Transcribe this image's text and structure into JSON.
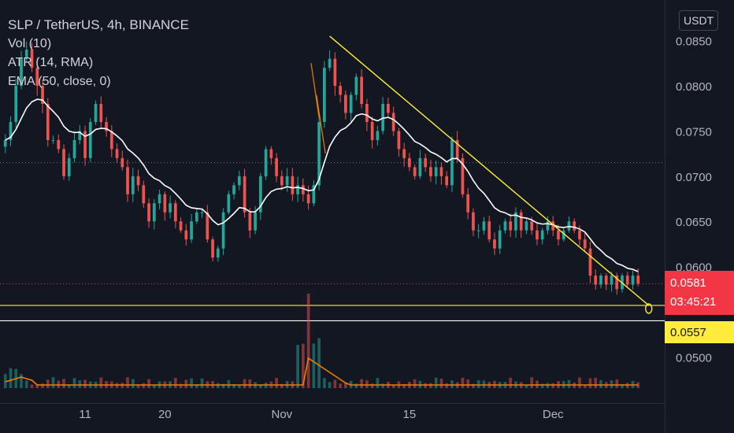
{
  "legend": {
    "symbol": "SLP / TetherUS, 4h, BINANCE",
    "vol": "Vol (10)",
    "atr": "ATR (14, RMA)",
    "ema": "EMA (50, close, 0)"
  },
  "currency": "USDT",
  "last_price": "0.0581",
  "countdown": "03:45:21",
  "level_price": "0.0557",
  "colors": {
    "background": "#131722",
    "up": "#26a69a",
    "down": "#ef5350",
    "ema": "#ffffff",
    "trendline": "#ffeb3b",
    "volume_ma": "#f57c00",
    "last_price_bg": "#f23645"
  },
  "chart_data": {
    "type": "candlestick",
    "title": "SLP / TetherUS, 4h, BINANCE",
    "ylim": [
      0.0455,
      0.0895
    ],
    "y_ticks": [
      0.085,
      0.08,
      0.075,
      0.07,
      0.065,
      0.06,
      0.05
    ],
    "y_tick_labels": [
      "0.0850",
      "0.0800",
      "0.0750",
      "0.0700",
      "0.0650",
      "0.0600",
      "0.0500"
    ],
    "x_ticks": [
      {
        "label": "11",
        "index": 15
      },
      {
        "label": "20",
        "index": 30
      },
      {
        "label": "Nov",
        "index": 52
      },
      {
        "label": "15",
        "index": 76
      },
      {
        "label": "Dec",
        "index": 103
      }
    ],
    "x_range": [
      -1,
      124
    ],
    "close_approx": [
      0.074,
      0.076,
      0.08,
      0.083,
      0.084,
      0.082,
      0.08,
      0.078,
      0.074,
      0.074,
      0.073,
      0.07,
      0.072,
      0.074,
      0.075,
      0.072,
      0.076,
      0.078,
      0.076,
      0.075,
      0.073,
      0.072,
      0.071,
      0.068,
      0.07,
      0.069,
      0.067,
      0.065,
      0.067,
      0.068,
      0.066,
      0.067,
      0.065,
      0.064,
      0.063,
      0.065,
      0.066,
      0.066,
      0.063,
      0.061,
      0.062,
      0.066,
      0.068,
      0.069,
      0.07,
      0.066,
      0.064,
      0.066,
      0.07,
      0.073,
      0.072,
      0.07,
      0.069,
      0.07,
      0.068,
      0.069,
      0.068,
      0.067,
      0.069,
      0.076,
      0.082,
      0.083,
      0.08,
      0.079,
      0.077,
      0.079,
      0.081,
      0.078,
      0.076,
      0.074,
      0.075,
      0.078,
      0.077,
      0.075,
      0.073,
      0.072,
      0.071,
      0.07,
      0.072,
      0.071,
      0.07,
      0.071,
      0.07,
      0.069,
      0.074,
      0.072,
      0.068,
      0.066,
      0.064,
      0.064,
      0.065,
      0.063,
      0.062,
      0.064,
      0.065,
      0.064,
      0.066,
      0.064,
      0.065,
      0.064,
      0.063,
      0.064,
      0.065,
      0.064,
      0.063,
      0.064,
      0.065,
      0.064,
      0.063,
      0.062,
      0.059,
      0.058,
      0.059,
      0.058,
      0.059,
      0.0575,
      0.059,
      0.058,
      0.059,
      0.0581
    ],
    "series": [
      {
        "name": "EMA (50, close, 0)",
        "color": "#ffffff"
      },
      {
        "name": "Vol (10)",
        "color": "#f57c00"
      }
    ],
    "trendline": {
      "from": {
        "index": 61,
        "price": 0.0855
      },
      "to": {
        "index": 121,
        "price": 0.0557
      }
    },
    "horizontal_levels": [
      {
        "price": 0.0557,
        "color": "#ffeb3b"
      },
      {
        "price": 0.054,
        "color": "#ffffff"
      },
      {
        "price": 0.0581,
        "color": "#f23645",
        "style": "dotted"
      },
      {
        "price": 0.0715,
        "color": "#787b86",
        "style": "dotted"
      }
    ],
    "volume_spike_index": 57
  }
}
